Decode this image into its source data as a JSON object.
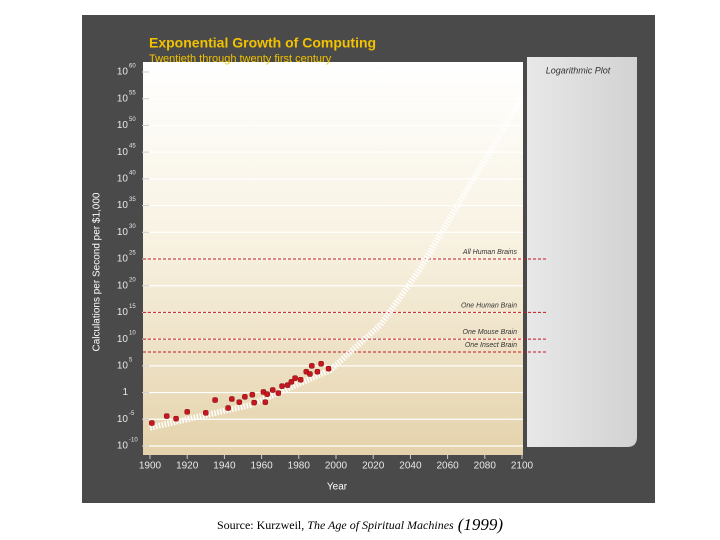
{
  "chart_data": {
    "type": "scatter",
    "title": "Exponential Growth of Computing",
    "subtitle": "Twentieth through twenty first century",
    "y_label": "Calculations per Second per $1,000",
    "x_label": "Year",
    "plot_note": "Logarithmic Plot",
    "log_y": true,
    "grid": true,
    "xlim": [
      1900,
      2100
    ],
    "xticks": [
      1900,
      1920,
      1940,
      1960,
      1980,
      2000,
      2020,
      2040,
      2060,
      2080,
      2100
    ],
    "ylim": [
      1e-10,
      1e+60
    ],
    "yticks": [
      {
        "value": 1e-10,
        "label": "10",
        "sup": "-10"
      },
      {
        "value": 1e-05,
        "label": "10",
        "sup": "-5"
      },
      1,
      {
        "value": 100000.0,
        "label": "10",
        "sup": "5"
      },
      {
        "value": 10000000000.0,
        "label": "10",
        "sup": "10"
      },
      {
        "value": 1000000000000000.0,
        "label": "10",
        "sup": "15"
      },
      {
        "value": 1e+20,
        "label": "10",
        "sup": "20"
      },
      {
        "value": 1e+25,
        "label": "10",
        "sup": "25"
      },
      {
        "value": 1e+30,
        "label": "10",
        "sup": "30"
      },
      {
        "value": 1e+35,
        "label": "10",
        "sup": "35"
      },
      {
        "value": 1e+40,
        "label": "10",
        "sup": "40"
      },
      {
        "value": 1e+45,
        "label": "10",
        "sup": "45"
      },
      {
        "value": 1e+50,
        "label": "10",
        "sup": "50"
      },
      {
        "value": 1e+55,
        "label": "10",
        "sup": "55"
      },
      {
        "value": 1e+60,
        "label": "10",
        "sup": "60"
      }
    ],
    "series": [
      {
        "color": "#c8161e",
        "x": [
          1901,
          1909,
          1914,
          1920,
          1930,
          1935,
          1942,
          1944,
          1948,
          1951,
          1955,
          1956,
          1961,
          1962,
          1963,
          1966,
          1969,
          1971,
          1974,
          1976,
          1978,
          1981,
          1984,
          1986,
          1987,
          1990,
          1992,
          1996
        ],
        "values": [
          2e-06,
          4e-05,
          1.3e-05,
          0.00025,
          0.00016,
          0.04,
          0.0013,
          0.063,
          0.016,
          0.16,
          0.4,
          0.013,
          1.3,
          0.016,
          0.5,
          3,
          0.8,
          16,
          25,
          100,
          500,
          250,
          8000,
          3000,
          100000.0,
          8000,
          250000.0,
          30000.0
        ]
      },
      {
        "type": "line",
        "style": "dotted",
        "color": "#ffffff",
        "x": [
          1900,
          1954,
          1997,
          2024,
          2045,
          2067,
          2088,
          2099
        ],
        "values": [
          2.5e-07,
          0.005,
          16000.0,
          5000000000000.0,
          1e+23,
          1e+36,
          1e+48,
          6e+54
        ]
      }
    ],
    "annotations": [
      {
        "text": "All Human Brains",
        "value": 1e+25,
        "color": "#c8161e"
      },
      {
        "text": "One Human Brain",
        "value": 1000000000000000.0,
        "color": "#c8161e"
      },
      {
        "text": "One Mouse Brain",
        "value": 10000000000.0,
        "color": "#c8161e"
      },
      {
        "text": "One Insect Brain",
        "value": 40000000.0,
        "color": "#c8161e"
      }
    ]
  },
  "caption": {
    "prefix": "Source: Kurzweil, ",
    "book": "The Age of Spiritual Machines",
    "year": "(1999)"
  }
}
